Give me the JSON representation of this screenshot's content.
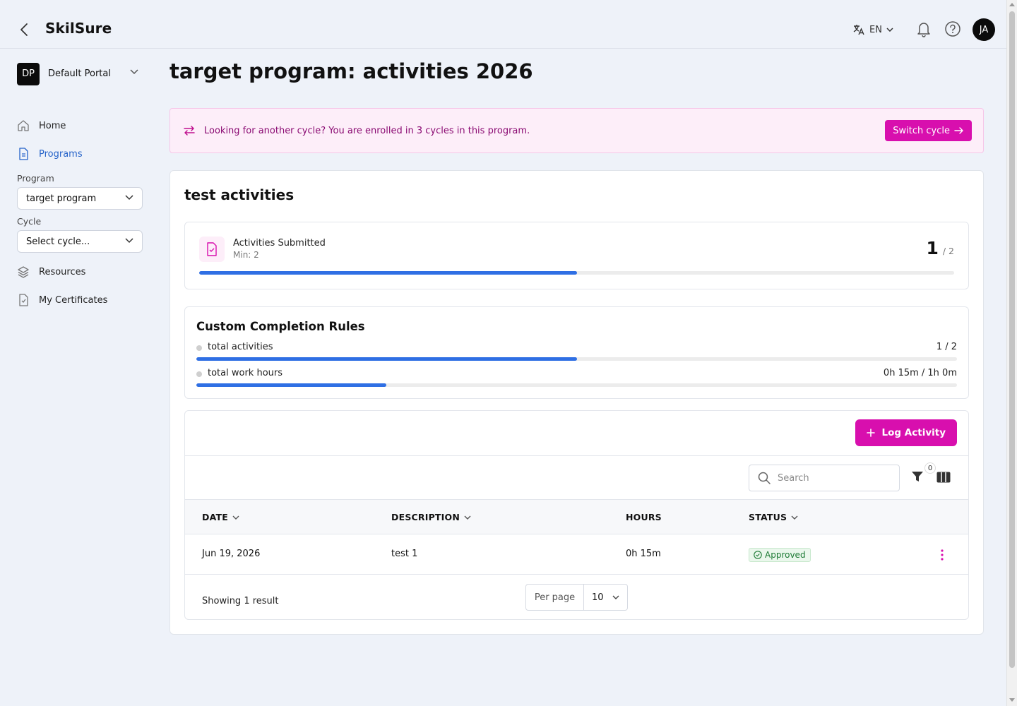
{
  "app": {
    "name": "SkilSure"
  },
  "header": {
    "language": "EN",
    "avatar_initials": "JA",
    "icons": [
      "back-arrow-icon",
      "translate-icon",
      "chevron-down-icon",
      "bell-icon",
      "help-icon"
    ]
  },
  "sidebar": {
    "portal": {
      "initials": "DP",
      "name": "Default Portal"
    },
    "items": [
      {
        "label": "Home",
        "icon": "home-icon",
        "active": false
      },
      {
        "label": "Programs",
        "icon": "document-icon",
        "active": true
      },
      {
        "label": "Resources",
        "icon": "layers-icon",
        "active": false
      },
      {
        "label": "My Certificates",
        "icon": "certificate-icon",
        "active": false
      }
    ],
    "program_label": "Program",
    "program_value": "target program",
    "cycle_label": "Cycle",
    "cycle_value": "Select cycle..."
  },
  "main": {
    "title": "target program: activities 2026",
    "banner": {
      "text": "Looking for another cycle? You are enrolled in 3 cycles in this program.",
      "button": "Switch cycle"
    },
    "section_title": "test activities",
    "metric": {
      "label": "Activities Submitted",
      "sub": "Min: 2",
      "count": "1",
      "total": "/ 2",
      "progress": 0.5
    },
    "rules": {
      "title": "Custom Completion Rules",
      "items": [
        {
          "name": "total activities",
          "value": "1 / 2",
          "progress": 0.5
        },
        {
          "name": "total work hours",
          "value": "0h 15m / 1h 0m",
          "progress": 0.25
        }
      ]
    },
    "log_button": "Log Activity",
    "table": {
      "search_placeholder": "Search",
      "filter_count": "0",
      "columns": [
        "DATE",
        "DESCRIPTION",
        "HOURS",
        "STATUS"
      ],
      "rows": [
        {
          "date": "Jun 19, 2026",
          "description": "test 1",
          "hours": "0h 15m",
          "status": "Approved"
        }
      ],
      "footer": "Showing 1 result",
      "per_page_label": "Per page",
      "per_page_value": "10"
    }
  },
  "colors": {
    "accent": "#d80fae",
    "link": "#2563c9",
    "progress": "#2f6fe4",
    "background": "#eef2f9",
    "banner_bg": "#fdeef9",
    "approved": "#1d7a35"
  }
}
